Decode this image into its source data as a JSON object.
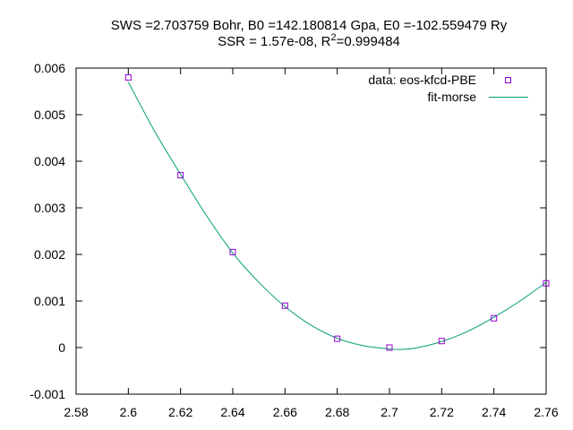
{
  "chart_data": {
    "type": "scatter",
    "title_line1": "SWS =2.703759 Bohr, B0 =142.180814 Gpa, E0 =-102.559479 Ry",
    "title_line2_prefix": "SSR = 1.57e-08, R",
    "title_line2_sup": "2",
    "title_line2_suffix": "=0.999484",
    "xlabel": "",
    "ylabel": "",
    "xlim": [
      2.58,
      2.76
    ],
    "ylim": [
      -0.001,
      0.006
    ],
    "xticks": [
      "2.58",
      "2.6",
      "2.62",
      "2.64",
      "2.66",
      "2.68",
      "2.7",
      "2.72",
      "2.74",
      "2.76"
    ],
    "yticks": [
      "-0.001",
      "0",
      "0.001",
      "0.002",
      "0.003",
      "0.004",
      "0.005",
      "0.006"
    ],
    "grid": false,
    "legend_position": "top-right",
    "series": [
      {
        "name": "data: eos-kfcd-PBE",
        "kind": "points",
        "color": "#9400d3",
        "x": [
          2.6,
          2.62,
          2.64,
          2.66,
          2.68,
          2.7,
          2.72,
          2.74,
          2.76
        ],
        "y": [
          0.0058,
          0.0037,
          0.00205,
          0.0009,
          0.00019,
          0.0,
          0.00014,
          0.00063,
          0.00138
        ]
      },
      {
        "name": "fit-morse",
        "kind": "line",
        "color": "#009e73",
        "x": [
          2.6,
          2.61,
          2.62,
          2.63,
          2.64,
          2.65,
          2.66,
          2.67,
          2.68,
          2.69,
          2.7,
          2.704,
          2.71,
          2.72,
          2.73,
          2.74,
          2.75,
          2.76
        ],
        "y": [
          0.0057,
          0.00465,
          0.00372,
          0.00283,
          0.00203,
          0.0014,
          0.00088,
          0.00048,
          0.0002,
          4e-05,
          -3e-05,
          -4e-05,
          -1e-05,
          0.00013,
          0.00035,
          0.00065,
          0.001,
          0.0014
        ]
      }
    ]
  }
}
